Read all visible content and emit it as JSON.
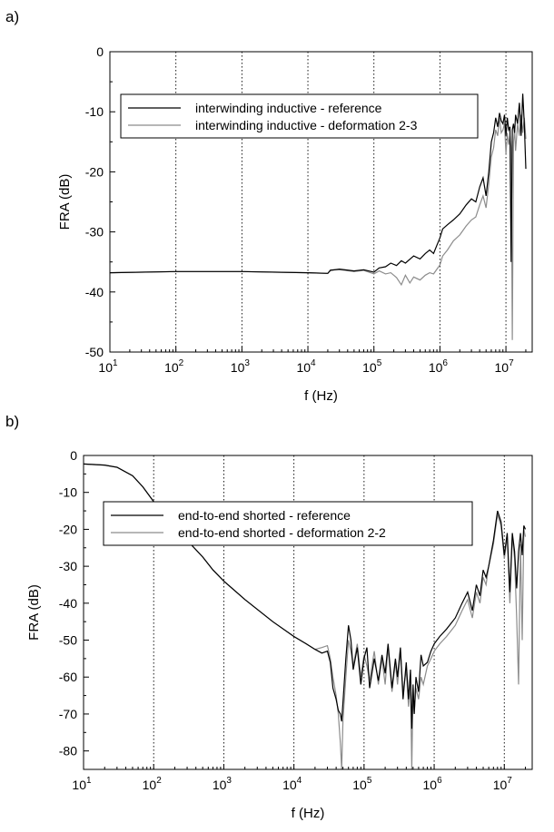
{
  "chart_data": [
    {
      "panel_label": "a)",
      "type": "line",
      "xscale": "log",
      "xlim": [
        10,
        25000000
      ],
      "ylim": [
        -50,
        0
      ],
      "xlabel": "f (Hz)",
      "ylabel": "FRA (dB)",
      "xticks": [
        {
          "base": "10",
          "exp": "1"
        },
        {
          "base": "10",
          "exp": "2"
        },
        {
          "base": "10",
          "exp": "3"
        },
        {
          "base": "10",
          "exp": "4"
        },
        {
          "base": "10",
          "exp": "5"
        },
        {
          "base": "10",
          "exp": "6"
        },
        {
          "base": "10",
          "exp": "7"
        }
      ],
      "yticks": [
        "0",
        "-10",
        "-20",
        "-30",
        "-40",
        "-50"
      ],
      "ytick_values": [
        0,
        -10,
        -20,
        -30,
        -40,
        -50
      ],
      "grid": "vertical dotted at decades",
      "legend_position": "upper-center",
      "series": [
        {
          "name": "interwinding inductive - reference",
          "color": "#000000",
          "x": [
            10,
            100,
            1000,
            10000,
            20000,
            22000,
            30000,
            50000,
            70000,
            100000,
            120000,
            150000,
            180000,
            220000,
            260000,
            300000,
            400000,
            500000,
            600000,
            700000,
            800000,
            900000,
            1000000,
            1100000,
            1300000,
            1600000,
            2000000,
            2500000,
            3000000,
            3500000,
            4000000,
            4500000,
            5000000,
            5500000,
            6000000,
            6500000,
            7000000,
            7500000,
            8000000,
            8500000,
            9000000,
            9500000,
            10000000,
            10500000,
            11000000,
            11500000,
            12000000,
            12500000,
            13000000,
            13500000,
            14000000,
            15000000,
            16000000,
            17000000,
            18000000,
            19000000,
            20000000
          ],
          "y": [
            -36.8,
            -36.6,
            -36.6,
            -36.8,
            -36.9,
            -36.4,
            -36.2,
            -36.5,
            -36.3,
            -36.7,
            -36.0,
            -35.8,
            -35.2,
            -35.6,
            -34.8,
            -35.2,
            -34.0,
            -34.5,
            -33.6,
            -33.0,
            -33.6,
            -32.2,
            -31.0,
            -29.5,
            -28.8,
            -28.0,
            -27.0,
            -25.5,
            -24.5,
            -25.0,
            -22.5,
            -21.0,
            -24.0,
            -20.0,
            -15.0,
            -13.5,
            -11.0,
            -12.5,
            -10.2,
            -11.5,
            -12.0,
            -10.5,
            -14.0,
            -11.0,
            -13.0,
            -12.5,
            -35.0,
            -13.0,
            -12.0,
            -13.5,
            -10.5,
            -12.0,
            -8.5,
            -14.0,
            -7.0,
            -12.0,
            -19.5
          ]
        },
        {
          "name": "interwinding inductive - deformation 2-3",
          "color": "#8c8c8c",
          "x": [
            10,
            100,
            1000,
            10000,
            20000,
            22000,
            30000,
            50000,
            70000,
            100000,
            120000,
            150000,
            180000,
            220000,
            260000,
            300000,
            350000,
            400000,
            500000,
            600000,
            700000,
            800000,
            900000,
            1000000,
            1100000,
            1300000,
            1600000,
            2000000,
            2500000,
            3000000,
            3500000,
            4000000,
            4500000,
            5000000,
            5500000,
            6000000,
            6500000,
            7000000,
            7500000,
            8000000,
            8500000,
            9000000,
            9500000,
            10000000,
            10500000,
            11000000,
            11500000,
            12000000,
            12500000,
            13000000,
            13500000,
            14000000,
            15000000,
            16000000,
            17000000,
            18000000,
            19000000,
            20000000
          ],
          "y": [
            -36.8,
            -36.6,
            -36.6,
            -36.8,
            -36.9,
            -36.3,
            -36.3,
            -36.6,
            -36.4,
            -37.0,
            -36.5,
            -37.0,
            -36.8,
            -37.6,
            -38.8,
            -37.2,
            -38.5,
            -37.5,
            -38.0,
            -37.2,
            -36.8,
            -37.0,
            -36.2,
            -35.5,
            -34.0,
            -33.0,
            -31.5,
            -30.5,
            -29.0,
            -28.0,
            -27.5,
            -25.5,
            -24.0,
            -26.0,
            -22.0,
            -17.5,
            -16.0,
            -13.0,
            -14.0,
            -11.0,
            -13.5,
            -13.0,
            -12.0,
            -17.0,
            -13.5,
            -15.5,
            -14.0,
            -16.0,
            -48.0,
            -15.0,
            -13.0,
            -16.5,
            -12.0,
            -14.0,
            -10.5,
            -13.5,
            -11.0,
            -14.5
          ]
        }
      ]
    },
    {
      "panel_label": "b)",
      "type": "line",
      "xscale": "log",
      "xlim": [
        10,
        25000000
      ],
      "ylim": [
        -85,
        0
      ],
      "xlabel": "f (Hz)",
      "ylabel": "FRA (dB)",
      "xticks": [
        {
          "base": "10",
          "exp": "1"
        },
        {
          "base": "10",
          "exp": "2"
        },
        {
          "base": "10",
          "exp": "3"
        },
        {
          "base": "10",
          "exp": "4"
        },
        {
          "base": "10",
          "exp": "5"
        },
        {
          "base": "10",
          "exp": "6"
        },
        {
          "base": "10",
          "exp": "7"
        }
      ],
      "yticks": [
        "0",
        "-10",
        "-20",
        "-30",
        "-40",
        "-50",
        "-60",
        "-70",
        "-80"
      ],
      "ytick_values": [
        0,
        -10,
        -20,
        -30,
        -40,
        -50,
        -60,
        -70,
        -80
      ],
      "grid": "vertical dotted at decades",
      "legend_position": "upper-center",
      "series": [
        {
          "name": "end-to-end shorted - reference",
          "color": "#000000",
          "x": [
            10,
            20,
            30,
            50,
            70,
            100,
            150,
            200,
            300,
            500,
            700,
            1000,
            2000,
            5000,
            10000,
            15000,
            20000,
            25000,
            30000,
            33000,
            36000,
            40000,
            43000,
            46000,
            48000,
            50000,
            55000,
            60000,
            65000,
            70000,
            80000,
            90000,
            100000,
            110000,
            120000,
            140000,
            160000,
            180000,
            200000,
            220000,
            250000,
            280000,
            300000,
            330000,
            360000,
            400000,
            430000,
            460000,
            480000,
            500000,
            520000,
            550000,
            600000,
            650000,
            700000,
            800000,
            900000,
            1000000,
            1200000,
            1500000,
            2000000,
            2500000,
            3000000,
            3500000,
            4000000,
            4500000,
            5000000,
            5500000,
            6000000,
            7000000,
            8000000,
            9000000,
            10000000,
            11000000,
            12000000,
            13000000,
            14000000,
            15000000,
            16000000,
            17000000,
            18000000,
            19000000,
            20000000
          ],
          "y": [
            -2.3,
            -2.6,
            -3.2,
            -5.5,
            -8.5,
            -12.5,
            -16.0,
            -19.0,
            -23.0,
            -27.5,
            -31.0,
            -34.0,
            -39.0,
            -45.0,
            -49.0,
            -51.0,
            -52.5,
            -53.5,
            -53.0,
            -56.0,
            -63.0,
            -66.0,
            -69.0,
            -70.0,
            -72.0,
            -67.0,
            -55.0,
            -46.0,
            -50.0,
            -58.0,
            -52.0,
            -62.0,
            -55.0,
            -52.0,
            -63.0,
            -55.0,
            -61.0,
            -54.0,
            -59.0,
            -51.0,
            -63.0,
            -55.0,
            -60.0,
            -52.0,
            -66.0,
            -56.0,
            -66.0,
            -58.0,
            -74.0,
            -62.0,
            -70.0,
            -60.0,
            -64.0,
            -54.0,
            -57.0,
            -56.0,
            -53.0,
            -51.0,
            -49.0,
            -47.0,
            -44.0,
            -40.0,
            -37.0,
            -42.0,
            -35.0,
            -38.0,
            -31.0,
            -33.0,
            -30.0,
            -23.0,
            -15.0,
            -18.0,
            -27.0,
            -21.0,
            -37.0,
            -21.0,
            -26.0,
            -36.0,
            -26.0,
            -21.0,
            -27.0,
            -19.0,
            -20.0
          ]
        },
        {
          "name": "end-to-end shorted - deformation 2-2",
          "color": "#8c8c8c",
          "x": [
            10,
            20,
            30,
            50,
            70,
            100,
            150,
            200,
            300,
            500,
            700,
            1000,
            2000,
            5000,
            10000,
            15000,
            20000,
            25000,
            30000,
            33000,
            36000,
            40000,
            43000,
            46000,
            48000,
            50000,
            55000,
            60000,
            65000,
            70000,
            80000,
            90000,
            100000,
            110000,
            120000,
            140000,
            160000,
            180000,
            200000,
            220000,
            250000,
            280000,
            300000,
            330000,
            360000,
            400000,
            430000,
            460000,
            480000,
            500000,
            520000,
            550000,
            600000,
            650000,
            700000,
            800000,
            900000,
            1000000,
            1200000,
            1500000,
            2000000,
            2500000,
            3000000,
            3500000,
            4000000,
            4500000,
            5000000,
            5500000,
            6000000,
            7000000,
            8000000,
            9000000,
            10000000,
            11000000,
            12000000,
            13000000,
            14000000,
            15000000,
            16000000,
            17000000,
            18000000,
            19000000,
            20000000
          ],
          "y": [
            -2.3,
            -2.6,
            -3.2,
            -5.5,
            -8.5,
            -12.5,
            -16.0,
            -19.0,
            -23.0,
            -27.5,
            -31.0,
            -34.0,
            -39.0,
            -45.0,
            -49.0,
            -51.0,
            -52.5,
            -52.0,
            -51.5,
            -55.0,
            -60.0,
            -65.0,
            -70.0,
            -78.0,
            -85.0,
            -72.0,
            -60.0,
            -50.0,
            -53.0,
            -57.0,
            -51.0,
            -60.0,
            -54.0,
            -57.0,
            -61.0,
            -53.0,
            -62.0,
            -55.0,
            -62.0,
            -52.0,
            -64.0,
            -56.0,
            -62.0,
            -53.0,
            -64.0,
            -58.0,
            -68.0,
            -62.0,
            -85.0,
            -63.0,
            -70.0,
            -63.0,
            -66.0,
            -60.0,
            -62.0,
            -57.0,
            -55.0,
            -53.0,
            -51.0,
            -49.0,
            -46.0,
            -42.0,
            -39.0,
            -44.0,
            -37.0,
            -40.0,
            -33.0,
            -35.0,
            -30.0,
            -24.0,
            -16.0,
            -19.0,
            -28.0,
            -22.0,
            -40.0,
            -22.0,
            -28.0,
            -44.0,
            -62.0,
            -24.0,
            -50.0,
            -20.0,
            -22.0
          ]
        }
      ]
    }
  ]
}
